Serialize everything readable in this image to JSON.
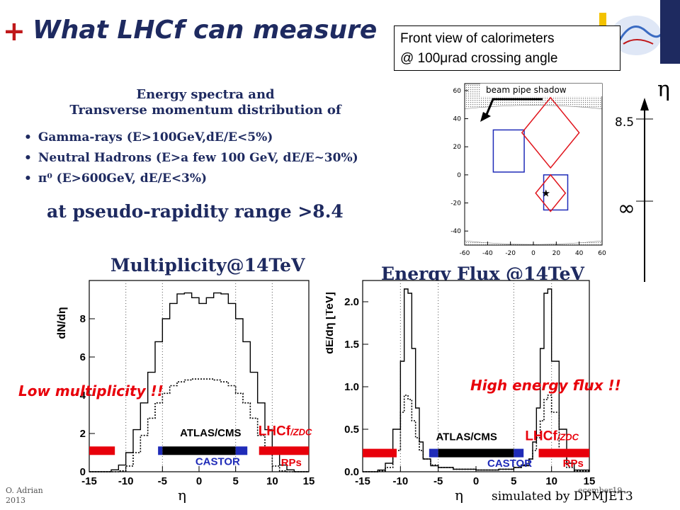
{
  "slide": {
    "plus": "+",
    "title": "What LHCf can measure",
    "calorimeter_box": {
      "line1": "Front view of calorimeters",
      "line2": "@ 100μrad crossing angle"
    },
    "subtitle_line1": "Energy spectra and",
    "subtitle_line2": "Transverse momentum distribution of",
    "bullets": [
      "Gamma-rays (E>100GeV,dE/E<5%)",
      "Neutral Hadrons (E>a few 100 GeV, dE/E~30%)",
      "π⁰ (E>600GeV, dE/E<3%)"
    ],
    "range_text": "at pseudo-rapidity range >8.4",
    "mult_title": "Multiplicity@14TeV",
    "ef_title": "Energy Flux @14TeV",
    "low_note": "Low multiplicity !!",
    "high_note": "High energy flux !!",
    "footer_left_line1": "O. Adrian",
    "footer_left_line2": "2013",
    "footer_right": "ecember19",
    "simulated": "simulated by DPMJET3",
    "colors": {
      "title": "#1e2a60",
      "accent": "#c0181a",
      "note": "#e8000b"
    }
  },
  "chart_data": [
    {
      "type": "scatter",
      "panel": "front-view",
      "title": "",
      "annotation": "beam pipe shadow",
      "xlim": [
        -60,
        60
      ],
      "ylim": [
        -50,
        65
      ],
      "xticks": [
        -60,
        -40,
        -20,
        0,
        20,
        40,
        60
      ],
      "yticks": [
        -40,
        -20,
        0,
        20,
        40,
        60
      ],
      "shadow_above_y": 47,
      "shadow_below_y": -47,
      "boxes": [
        {
          "shape": "square",
          "color": "#1f2bb8",
          "x": [
            -35,
            -8
          ],
          "y": [
            2,
            32
          ]
        },
        {
          "shape": "square",
          "color": "#1f2bb8",
          "x": [
            9,
            30
          ],
          "y": [
            -25,
            0
          ]
        },
        {
          "shape": "diamond",
          "color": "#e0141c",
          "center": [
            15,
            30
          ],
          "half_diagonal": 25
        },
        {
          "shape": "diamond",
          "color": "#e0141c",
          "center": [
            15,
            -13
          ],
          "half_diagonal": 13
        }
      ],
      "beam_center": [
        11,
        -13
      ]
    },
    {
      "type": "line",
      "panel": "eta-axis",
      "axis_symbol": "η",
      "ticks": [
        "8.5",
        "∞"
      ]
    },
    {
      "type": "line",
      "panel": "multiplicity",
      "xlabel": "η",
      "ylabel": "dN/dη",
      "xlim": [
        -15,
        15
      ],
      "ylim": [
        0,
        10
      ],
      "xticks": [
        -15,
        -10,
        -5,
        0,
        5,
        10,
        15
      ],
      "yticks": [
        0,
        2,
        4,
        6,
        8
      ],
      "vlines": [
        -10,
        -5,
        5,
        10
      ],
      "x": [
        -15,
        -14,
        -13,
        -12,
        -11,
        -10,
        -9,
        -8,
        -7,
        -6,
        -5,
        -4,
        -3,
        -2,
        -1,
        0,
        1,
        2,
        3,
        4,
        5,
        6,
        7,
        8,
        9,
        10,
        11,
        12,
        13,
        14,
        15
      ],
      "series": [
        {
          "line": "solid",
          "values": [
            0,
            0,
            0,
            0.1,
            0.35,
            1.0,
            2.2,
            3.6,
            5.2,
            6.8,
            8.0,
            8.8,
            9.3,
            9.35,
            9.1,
            8.8,
            9.1,
            9.35,
            9.3,
            8.8,
            8.0,
            6.8,
            5.2,
            3.6,
            2.2,
            1.0,
            0.35,
            0.1,
            0,
            0,
            0
          ]
        },
        {
          "line": "dotted",
          "values": [
            0,
            0,
            0,
            0,
            0.05,
            0.3,
            1.0,
            1.9,
            2.8,
            3.6,
            4.1,
            4.5,
            4.7,
            4.8,
            4.85,
            4.85,
            4.85,
            4.8,
            4.7,
            4.5,
            4.1,
            3.6,
            2.8,
            1.9,
            1.0,
            0.3,
            0.05,
            0,
            0,
            0,
            0
          ]
        }
      ],
      "detector_bars": [
        {
          "color": "#e8000b",
          "x": [
            -15,
            -11.5
          ],
          "y": 1.1
        },
        {
          "color": "#1f2bb8",
          "x": [
            -5.6,
            -5.0
          ],
          "y": 1.1
        },
        {
          "color": "#000000",
          "x": [
            -5.0,
            5.0
          ],
          "y": 1.1
        },
        {
          "color": "#1f2bb8",
          "x": [
            5.0,
            6.6
          ],
          "y": 1.1
        },
        {
          "color": "#e8000b",
          "x": [
            8.2,
            15
          ],
          "y": 1.1
        }
      ],
      "detector_labels": [
        {
          "text": "ATLAS/CMS",
          "color": "#000000",
          "x": -2.6,
          "y": 1.85
        },
        {
          "text": "LHCf",
          "suffix": "/ZDC",
          "color": "#e8000b",
          "x": 8.1,
          "y": 1.9
        },
        {
          "text": "CASTOR",
          "color": "#1f2bb8",
          "x": -0.5,
          "y": 0.35
        },
        {
          "text": "RPs",
          "color": "#e8000b",
          "x": 11.2,
          "y": 0.3
        }
      ]
    },
    {
      "type": "line",
      "panel": "energy-flux",
      "xlabel": "η",
      "ylabel": "dE/dη [TeV]",
      "xlim": [
        -15,
        15
      ],
      "ylim": [
        0,
        2.25
      ],
      "xticks": [
        -15,
        -10,
        -5,
        0,
        5,
        10,
        15
      ],
      "yticks": [
        0.0,
        0.5,
        1.0,
        1.5,
        2.0
      ],
      "vlines": [
        -10,
        -5,
        5,
        10
      ],
      "x": [
        -15,
        -13,
        -12,
        -11,
        -10,
        -9.5,
        -9,
        -8.5,
        -8,
        -7.5,
        -7,
        -6,
        -5,
        -3,
        0,
        3,
        5,
        6,
        7,
        7.5,
        8,
        8.5,
        9,
        9.5,
        10,
        11,
        12,
        13,
        15
      ],
      "series": [
        {
          "line": "solid",
          "values": [
            0,
            0.02,
            0.1,
            0.5,
            1.3,
            2.15,
            2.1,
            1.45,
            0.75,
            0.35,
            0.15,
            0.07,
            0.05,
            0.03,
            0.02,
            0.03,
            0.05,
            0.07,
            0.15,
            0.35,
            0.75,
            1.45,
            2.1,
            2.15,
            1.3,
            0.5,
            0.1,
            0.02,
            0
          ]
        },
        {
          "line": "dotted",
          "values": [
            0,
            0.01,
            0.05,
            0.25,
            0.7,
            0.9,
            0.85,
            0.6,
            0.4,
            0.25,
            0.15,
            0.08,
            0.05,
            0.03,
            0.02,
            0.03,
            0.05,
            0.08,
            0.15,
            0.25,
            0.4,
            0.6,
            0.85,
            0.9,
            0.7,
            0.25,
            0.05,
            0.01,
            0
          ]
        }
      ],
      "detector_bars": [
        {
          "color": "#e8000b",
          "x": [
            -15,
            -10.5
          ],
          "y": 0.22
        },
        {
          "color": "#1f2bb8",
          "x": [
            -6.2,
            -5.0
          ],
          "y": 0.22
        },
        {
          "color": "#000000",
          "x": [
            -5.0,
            5.0
          ],
          "y": 0.22
        },
        {
          "color": "#1f2bb8",
          "x": [
            5.0,
            6.3
          ],
          "y": 0.22
        },
        {
          "color": "#e8000b",
          "x": [
            8.3,
            15
          ],
          "y": 0.22
        }
      ],
      "detector_labels": [
        {
          "text": "ATLAS/CMS",
          "color": "#000000",
          "x": -5.3,
          "y": 0.37
        },
        {
          "text": "LHCf",
          "suffix": "/ZDC",
          "color": "#e8000b",
          "x": 6.5,
          "y": 0.37
        },
        {
          "text": "CASTOR",
          "color": "#1f2bb8",
          "x": 1.5,
          "y": 0.06
        },
        {
          "text": "RPs",
          "color": "#e8000b",
          "x": 11.5,
          "y": 0.06
        }
      ]
    }
  ]
}
